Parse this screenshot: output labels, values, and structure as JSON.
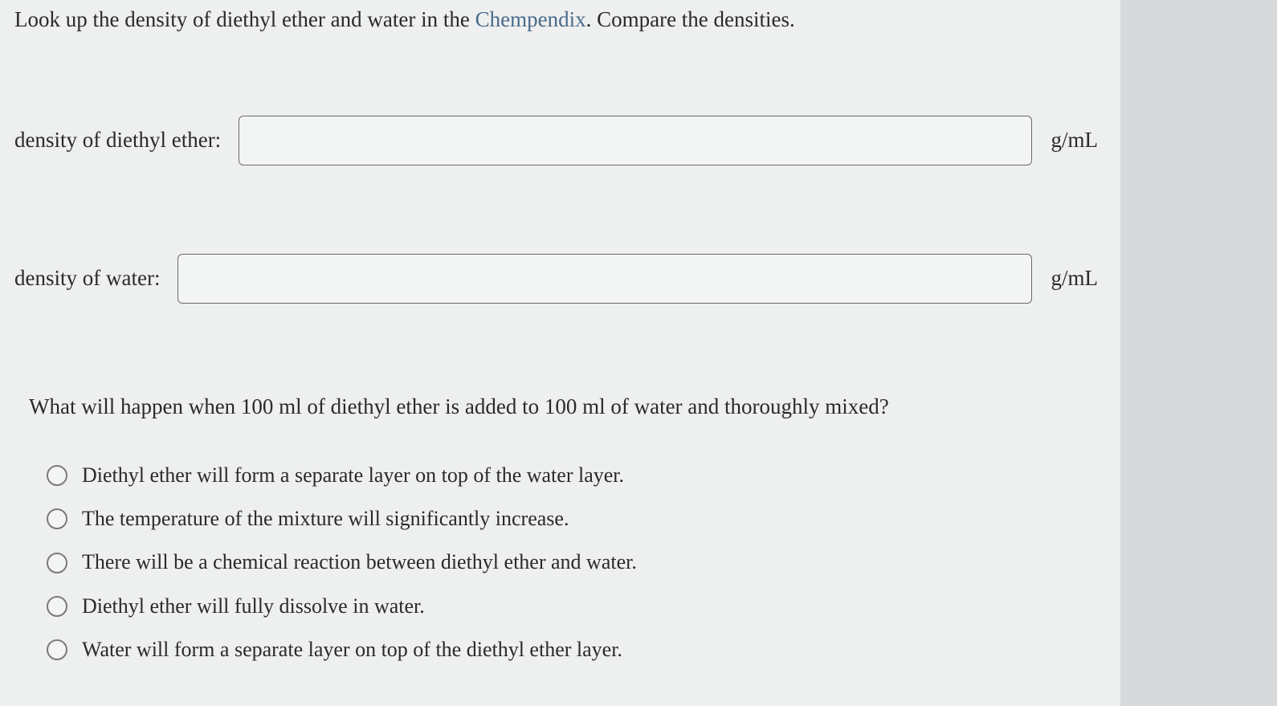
{
  "prompt": {
    "before_link": "Look up the density of diethyl ether and water in the ",
    "link_text": "Chempendix",
    "after_link": ". Compare the densities."
  },
  "inputs": {
    "ether": {
      "label": "density of diethyl ether:",
      "value": "",
      "unit": "g/mL"
    },
    "water": {
      "label": "density of water:",
      "value": "",
      "unit": "g/mL"
    }
  },
  "question": "What will happen when 100 ml of diethyl ether is added to 100 ml of water and thoroughly mixed?",
  "options": [
    "Diethyl ether will form a separate layer on top of the water layer.",
    "The temperature of the mixture will significantly increase.",
    "There will be a chemical reaction between diethyl ether and water.",
    "Diethyl ether will fully dissolve in water.",
    "Water will form a separate layer on top of the diethyl ether layer."
  ],
  "colors": {
    "page_bg": "#eeefef",
    "outer_bg": "#d8d9da",
    "text": "#2a2a2a",
    "link": "#4a6a8a",
    "input_border": "#6a6a6a",
    "radio_border": "#7a7a7a"
  }
}
